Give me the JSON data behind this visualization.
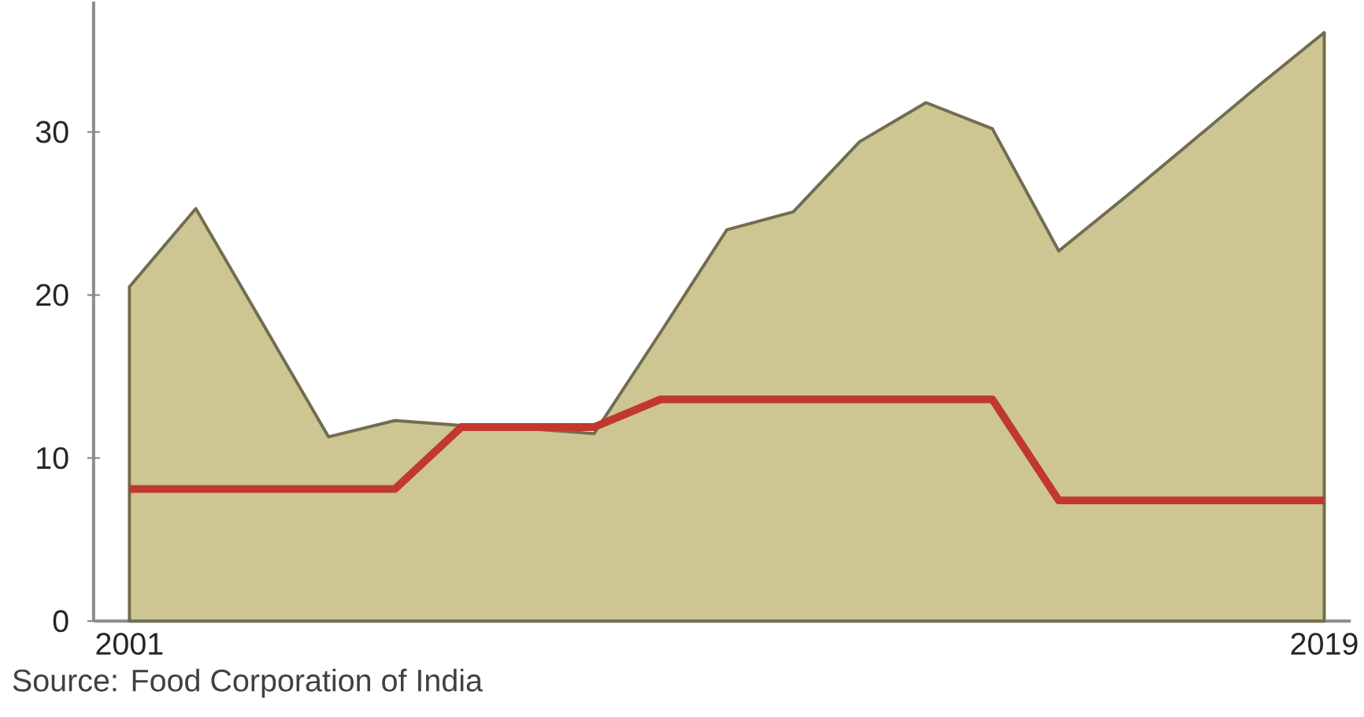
{
  "chart_data": {
    "type": "area",
    "x": [
      2001,
      2002,
      2003,
      2004,
      2005,
      2006,
      2007,
      2008,
      2009,
      2010,
      2011,
      2012,
      2013,
      2014,
      2015,
      2016,
      2017,
      2018,
      2019
    ],
    "series": [
      {
        "color": "#cdc692",
        "values": [
          20.5,
          25.3,
          18.3,
          11.3,
          12.3,
          12.0,
          11.8,
          11.5,
          17.7,
          24.0,
          25.1,
          29.4,
          31.8,
          30.2,
          22.7,
          26.0,
          29.4,
          32.8,
          36.1
        ]
      },
      {
        "type": "line",
        "color": "#c0392b",
        "values": [
          8.1,
          8.1,
          8.1,
          8.1,
          8.1,
          11.9,
          11.9,
          11.9,
          13.6,
          13.6,
          13.6,
          13.6,
          13.6,
          13.6,
          7.4,
          7.4,
          7.4,
          7.4,
          7.4
        ]
      }
    ],
    "xlim": [
      2000.46,
      2019.4
    ],
    "ylim": [
      0,
      38
    ],
    "xticks": [
      2001,
      2019
    ],
    "yticks": [
      0,
      10,
      20,
      30
    ],
    "annotations": [
      "Source: Food Corporation of India"
    ]
  }
}
